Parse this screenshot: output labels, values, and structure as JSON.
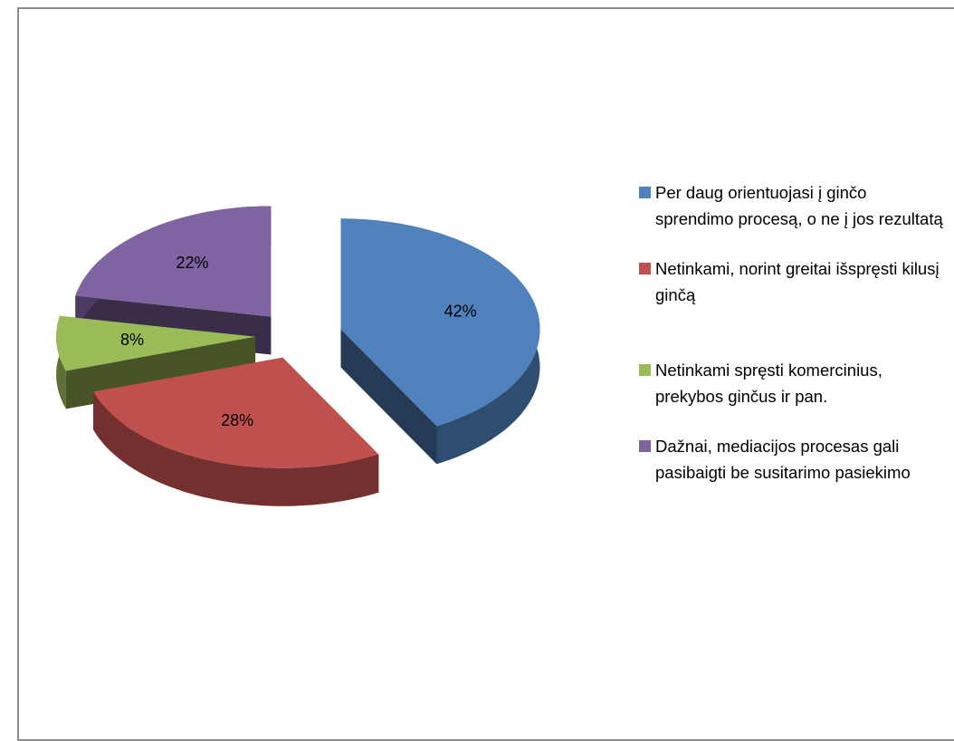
{
  "chart_data": {
    "type": "pie",
    "categories": [
      "Per daug orientuojasi į ginčo sprendimo procesą, o ne į jos rezultatą",
      "Netinkami, norint greitai išspręsti kilusį ginčą",
      "Netinkami spręsti komercinius, prekybos ginčus ir pan.",
      "Dažnai, mediacijos procesas gali pasibaigti be susitarimo pasiekimo"
    ],
    "values": [
      42,
      28,
      8,
      22
    ],
    "value_labels": [
      "42%",
      "28%",
      "8%",
      "22%"
    ],
    "colors": [
      "#4f81bd",
      "#c0504d",
      "#9bbb59",
      "#8064a2"
    ],
    "legend": "right"
  }
}
